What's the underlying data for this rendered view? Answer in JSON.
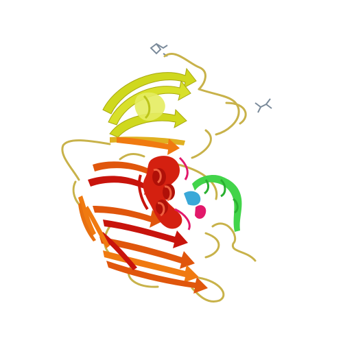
{
  "image": {
    "subject": "protein-ribbon-structure",
    "background": "#ffffff",
    "palette": {
      "loop": "#c8b24a",
      "helix_yellow": "#d8e02a",
      "strand_yellow": "#cfd81e",
      "strand_orange": "#f07a10",
      "strand_darkorange": "#e0560c",
      "strand_red": "#c8140c",
      "helix_red": "#d42010",
      "helix_green": "#42d44a",
      "helix_cyan": "#3aa8d8",
      "helix_magenta": "#e2186a",
      "stick": "#7a8a9a"
    }
  }
}
